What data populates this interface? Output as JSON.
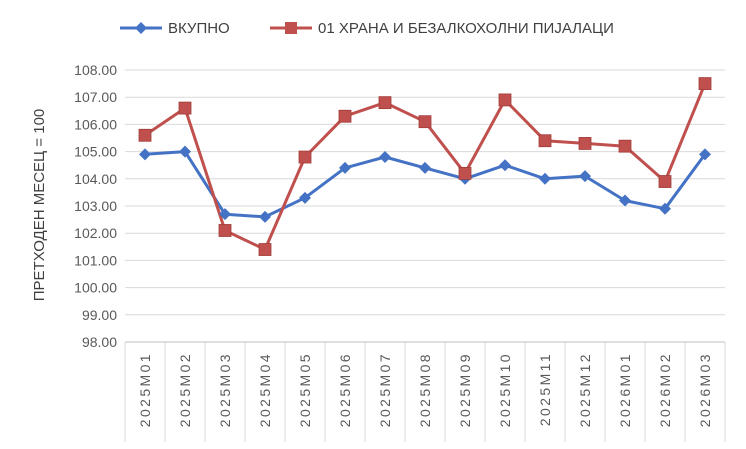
{
  "chart_data": {
    "type": "line",
    "title": "",
    "xlabel": "",
    "ylabel": "ПРЕТХОДЕН МЕСЕЦ = 100",
    "ylim": [
      98,
      108
    ],
    "ytick_step": 1,
    "grid": "horizontal",
    "legend_position": "top",
    "categories": [
      "2025M01",
      "2025M02",
      "2025M03",
      "2025M04",
      "2025M05",
      "2025M06",
      "2025M07",
      "2025M08",
      "2025M09",
      "2025M10",
      "2025M11",
      "2025M12",
      "2026M01",
      "2026M02",
      "2026M03"
    ],
    "series": [
      {
        "name": "ВКУПНО",
        "color": "#4472C4",
        "marker": "diamond",
        "values": [
          104.9,
          105.0,
          102.7,
          102.6,
          103.3,
          104.4,
          104.8,
          104.4,
          104.0,
          104.5,
          104.0,
          104.1,
          103.2,
          102.9,
          104.9
        ]
      },
      {
        "name": "01 ХРАНА И БЕЗАЛКОХОЛНИ ПИЈАЛАЦИ",
        "color": "#C0504D",
        "marker": "square",
        "values": [
          105.6,
          106.6,
          102.1,
          101.4,
          104.8,
          106.3,
          106.8,
          106.1,
          104.2,
          106.9,
          105.4,
          105.3,
          105.2,
          103.9,
          107.5
        ]
      }
    ]
  }
}
